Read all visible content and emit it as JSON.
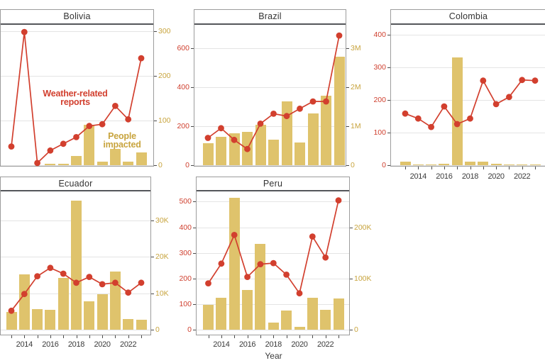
{
  "figure": {
    "x_axis_label": "Year",
    "years": [
      2013,
      2014,
      2015,
      2016,
      2017,
      2018,
      2019,
      2020,
      2021,
      2022,
      2023
    ],
    "x_tick_labels": [
      "2014",
      "2016",
      "2018",
      "2020",
      "2022"
    ],
    "annotations": {
      "reports_label_lines": [
        "Weather-related",
        "reports"
      ],
      "impacted_label_lines": [
        "People",
        "impacted"
      ]
    },
    "colors": {
      "reports_line": "#d23f2e",
      "reports_axis_text": "#cf3f2e",
      "impacted_bar": "#dfc36c",
      "impacted_axis_text": "#c8a43e",
      "axis_text": "#3a3a3a",
      "panel_border": "#9c9c9c",
      "strip_underline": "#54565a",
      "gridline": "#e4e4e4",
      "background": "#ffffff"
    }
  },
  "chart_data": [
    {
      "type": "bar+line",
      "title": "Bolivia",
      "x": [
        2013,
        2014,
        2015,
        2016,
        2017,
        2018,
        2019,
        2020,
        2021,
        2022,
        2023
      ],
      "series": [
        {
          "name": "Weather-related reports",
          "type": "line",
          "axis": "left",
          "values": [
            42,
            299,
            5,
            33,
            48,
            63,
            88,
            92,
            133,
            103,
            240
          ]
        },
        {
          "name": "People impacted",
          "type": "bar",
          "axis": "right",
          "values": [
            0,
            0,
            0,
            3,
            4,
            20,
            90,
            8,
            36,
            8,
            29
          ]
        }
      ],
      "left_axis": {
        "visible": false,
        "note": "cropped at image edge; line values estimated against right-axis scale"
      },
      "right_axis": {
        "visible": true,
        "tick_labels": [
          "0",
          "100",
          "200",
          "300"
        ],
        "tick_values": [
          0,
          100,
          200,
          300
        ]
      },
      "x_tick_labels_visible": false
    },
    {
      "type": "bar+line",
      "title": "Brazil",
      "x": [
        2013,
        2014,
        2015,
        2016,
        2017,
        2018,
        2019,
        2020,
        2021,
        2022,
        2023
      ],
      "series": [
        {
          "name": "Weather-related reports",
          "type": "line",
          "axis": "left",
          "values": [
            140,
            190,
            130,
            83,
            213,
            264,
            252,
            290,
            327,
            327,
            665
          ]
        },
        {
          "name": "People impacted",
          "type": "bar",
          "axis": "right",
          "values": [
            560000,
            720000,
            820000,
            850000,
            1040000,
            660000,
            1640000,
            580000,
            1320000,
            1780000,
            2780000
          ]
        }
      ],
      "left_axis": {
        "visible": true,
        "tick_labels": [
          "0",
          "200",
          "400",
          "600"
        ],
        "tick_values": [
          0,
          200,
          400,
          600
        ]
      },
      "right_axis": {
        "visible": true,
        "tick_labels": [
          "0",
          "1M",
          "2M",
          "3M"
        ],
        "tick_values": [
          0,
          1000000,
          2000000,
          3000000
        ]
      },
      "x_tick_labels_visible": false
    },
    {
      "type": "bar+line",
      "title": "Colombia",
      "x": [
        2013,
        2014,
        2015,
        2016,
        2017,
        2018,
        2019,
        2020,
        2021,
        2022,
        2023
      ],
      "series": [
        {
          "name": "Weather-related reports",
          "type": "line",
          "axis": "left",
          "values": [
            158,
            143,
            117,
            180,
            126,
            143,
            259,
            187,
            209,
            261,
            259
          ]
        },
        {
          "name": "People impacted",
          "type": "bar",
          "axis": "right",
          "values": [
            12,
            3,
            1,
            4,
            330,
            10,
            10,
            4,
            1,
            3,
            1
          ]
        }
      ],
      "left_axis": {
        "visible": true,
        "tick_labels": [
          "0",
          "100",
          "200",
          "300",
          "400"
        ],
        "tick_values": [
          0,
          100,
          200,
          300,
          400
        ]
      },
      "right_axis": {
        "visible": false,
        "note": "cropped at image edge; bar values estimated against left-axis scale"
      },
      "x_tick_labels_visible": true
    },
    {
      "type": "bar+line",
      "title": "Ecuador",
      "x": [
        2013,
        2014,
        2015,
        2016,
        2017,
        2018,
        2019,
        2020,
        2021,
        2022,
        2023
      ],
      "series": [
        {
          "name": "Weather-related reports",
          "type": "line",
          "axis": "left",
          "values": [
            5200,
            9800,
            14700,
            17000,
            15400,
            12900,
            14500,
            12500,
            12900,
            10200,
            12900
          ]
        },
        {
          "name": "People impacted",
          "type": "bar",
          "axis": "right",
          "values": [
            4800,
            15300,
            5600,
            5400,
            14300,
            35500,
            7900,
            9700,
            16000,
            2900,
            2700
          ]
        }
      ],
      "left_axis": {
        "visible": false,
        "note": "cropped at image edge; line values estimated against right-axis scale"
      },
      "right_axis": {
        "visible": true,
        "tick_labels": [
          "0",
          "10K",
          "20K",
          "30K"
        ],
        "tick_values": [
          0,
          10000,
          20000,
          30000
        ]
      },
      "x_tick_labels_visible": true
    },
    {
      "type": "bar+line",
      "title": "Peru",
      "x": [
        2013,
        2014,
        2015,
        2016,
        2017,
        2018,
        2019,
        2020,
        2021,
        2022,
        2023
      ],
      "series": [
        {
          "name": "Weather-related reports",
          "type": "line",
          "axis": "left",
          "values": [
            181,
            258,
            370,
            206,
            256,
            260,
            215,
            142,
            364,
            282,
            505
          ]
        },
        {
          "name": "People impacted",
          "type": "bar",
          "axis": "right",
          "values": [
            49000,
            62000,
            257000,
            78000,
            168000,
            14000,
            37000,
            6000,
            63000,
            39000,
            61000
          ]
        }
      ],
      "left_axis": {
        "visible": true,
        "tick_labels": [
          "0",
          "100",
          "200",
          "300",
          "400",
          "500"
        ],
        "tick_values": [
          0,
          100,
          200,
          300,
          400,
          500
        ]
      },
      "right_axis": {
        "visible": true,
        "tick_labels": [
          "0",
          "100K",
          "200K"
        ],
        "tick_values": [
          0,
          100000,
          200000
        ]
      },
      "x_tick_labels_visible": true
    }
  ]
}
